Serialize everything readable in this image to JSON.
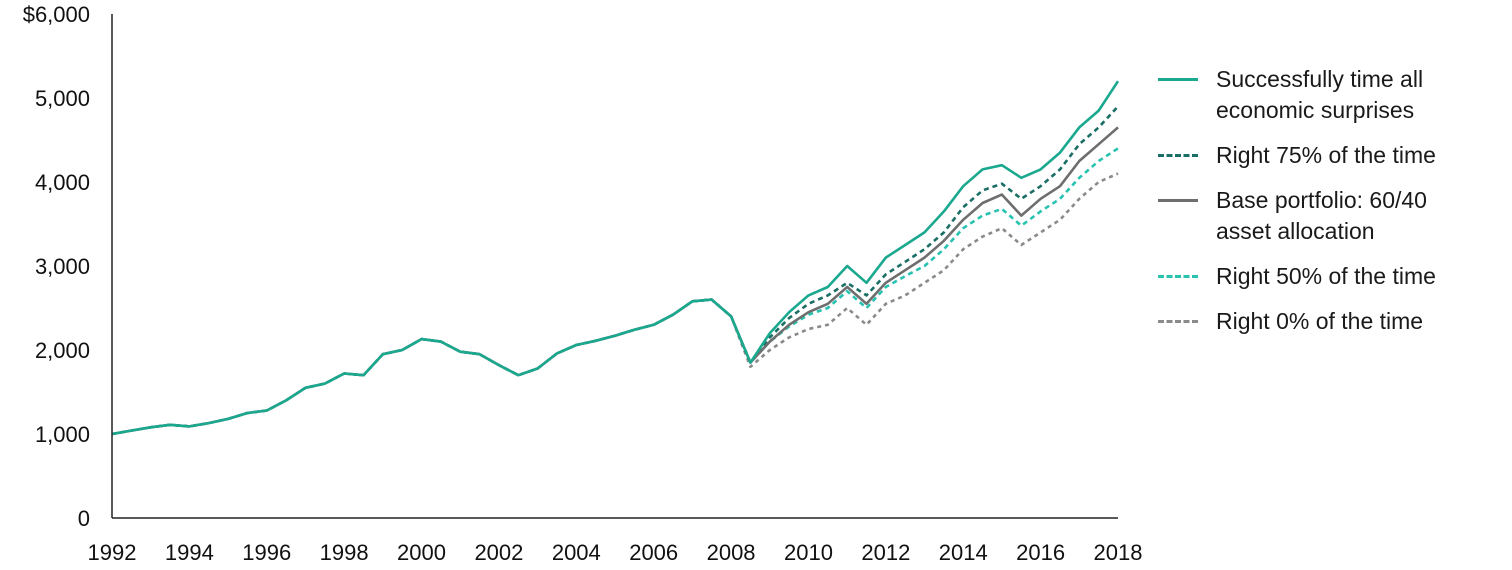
{
  "chart_data": {
    "type": "line",
    "title": "",
    "xlabel": "",
    "ylabel": "",
    "xlim": [
      1992,
      2018
    ],
    "ylim": [
      0,
      6000
    ],
    "grid": false,
    "legend_position": "right",
    "x_ticks": [
      {
        "value": 1992,
        "label": "1992"
      },
      {
        "value": 1994,
        "label": "1994"
      },
      {
        "value": 1996,
        "label": "1996"
      },
      {
        "value": 1998,
        "label": "1998"
      },
      {
        "value": 2000,
        "label": "2000"
      },
      {
        "value": 2002,
        "label": "2002"
      },
      {
        "value": 2004,
        "label": "2004"
      },
      {
        "value": 2006,
        "label": "2006"
      },
      {
        "value": 2008,
        "label": "2008"
      },
      {
        "value": 2010,
        "label": "2010"
      },
      {
        "value": 2012,
        "label": "2012"
      },
      {
        "value": 2014,
        "label": "2014"
      },
      {
        "value": 2016,
        "label": "2016"
      },
      {
        "value": 2018,
        "label": "2018"
      }
    ],
    "y_ticks": [
      {
        "value": 0,
        "label": "0"
      },
      {
        "value": 1000,
        "label": "1,000"
      },
      {
        "value": 2000,
        "label": "2,000"
      },
      {
        "value": 3000,
        "label": "3,000"
      },
      {
        "value": 4000,
        "label": "4,000"
      },
      {
        "value": 5000,
        "label": "5,000"
      },
      {
        "value": 6000,
        "label": "$6,000"
      }
    ],
    "x": [
      1992,
      1992.5,
      1993,
      1993.5,
      1994,
      1994.5,
      1995,
      1995.5,
      1996,
      1996.5,
      1997,
      1997.5,
      1998,
      1998.5,
      1999,
      1999.5,
      2000,
      2000.5,
      2001,
      2001.5,
      2002,
      2002.5,
      2003,
      2003.5,
      2004,
      2004.5,
      2005,
      2005.5,
      2006,
      2006.5,
      2007,
      2007.5,
      2008,
      2008.5,
      2009,
      2009.5,
      2010,
      2010.5,
      2011,
      2011.5,
      2012,
      2012.5,
      2013,
      2013.5,
      2014,
      2014.5,
      2015,
      2015.5,
      2016,
      2016.5,
      2017,
      2017.5,
      2018
    ],
    "series": [
      {
        "name": "Successfully time all\neconomic surprises",
        "color": "#1aa88e",
        "dash": "solid",
        "values": [
          1000,
          1040,
          1080,
          1110,
          1090,
          1130,
          1180,
          1250,
          1280,
          1400,
          1550,
          1600,
          1720,
          1700,
          1950,
          2000,
          2130,
          2100,
          1980,
          1950,
          1820,
          1700,
          1780,
          1960,
          2060,
          2110,
          2170,
          2240,
          2300,
          2420,
          2580,
          2600,
          2400,
          1850,
          2200,
          2450,
          2650,
          2750,
          3000,
          2800,
          3100,
          3250,
          3400,
          3650,
          3950,
          4150,
          4200,
          4050,
          4150,
          4350,
          4650,
          4850,
          5200
        ]
      },
      {
        "name": "Right 75% of the time",
        "color": "#1a6e66",
        "dash": "5,4",
        "values": [
          1000,
          1040,
          1080,
          1110,
          1090,
          1130,
          1180,
          1250,
          1280,
          1400,
          1550,
          1600,
          1720,
          1700,
          1950,
          2000,
          2130,
          2100,
          1980,
          1950,
          1820,
          1700,
          1780,
          1960,
          2060,
          2110,
          2170,
          2240,
          2300,
          2420,
          2580,
          2600,
          2400,
          1850,
          2150,
          2380,
          2550,
          2650,
          2800,
          2650,
          2900,
          3050,
          3200,
          3400,
          3700,
          3900,
          3980,
          3800,
          3950,
          4150,
          4450,
          4650,
          4900
        ]
      },
      {
        "name": "Base portfolio: 60/40\nasset allocation",
        "color": "#6e6e6e",
        "dash": "solid",
        "values": [
          1000,
          1040,
          1080,
          1110,
          1090,
          1130,
          1180,
          1250,
          1280,
          1400,
          1550,
          1600,
          1720,
          1700,
          1950,
          2000,
          2130,
          2100,
          1980,
          1950,
          1820,
          1700,
          1780,
          1960,
          2060,
          2110,
          2170,
          2240,
          2300,
          2420,
          2580,
          2600,
          2400,
          1850,
          2100,
          2300,
          2450,
          2550,
          2750,
          2550,
          2800,
          2950,
          3100,
          3300,
          3550,
          3750,
          3850,
          3600,
          3800,
          3950,
          4250,
          4450,
          4650
        ]
      },
      {
        "name": "Right 50% of the time",
        "color": "#27c2b0",
        "dash": "5,4",
        "values": [
          1000,
          1040,
          1080,
          1110,
          1090,
          1130,
          1180,
          1250,
          1280,
          1400,
          1550,
          1600,
          1720,
          1700,
          1950,
          2000,
          2130,
          2100,
          1980,
          1950,
          1820,
          1700,
          1780,
          1960,
          2060,
          2110,
          2170,
          2240,
          2300,
          2420,
          2580,
          2600,
          2400,
          1850,
          2100,
          2280,
          2420,
          2500,
          2700,
          2500,
          2750,
          2880,
          3000,
          3200,
          3450,
          3600,
          3680,
          3480,
          3650,
          3800,
          4050,
          4250,
          4400
        ]
      },
      {
        "name": "Right 0% of the time",
        "color": "#8a8a8a",
        "dash": "4,4",
        "values": [
          1000,
          1040,
          1080,
          1110,
          1090,
          1130,
          1180,
          1250,
          1280,
          1400,
          1550,
          1600,
          1720,
          1700,
          1950,
          2000,
          2130,
          2100,
          1980,
          1950,
          1820,
          1700,
          1780,
          1960,
          2060,
          2110,
          2170,
          2240,
          2300,
          2420,
          2580,
          2600,
          2400,
          1800,
          2000,
          2150,
          2250,
          2300,
          2500,
          2300,
          2550,
          2650,
          2800,
          2950,
          3200,
          3350,
          3450,
          3250,
          3400,
          3550,
          3800,
          4000,
          4100
        ]
      }
    ]
  }
}
